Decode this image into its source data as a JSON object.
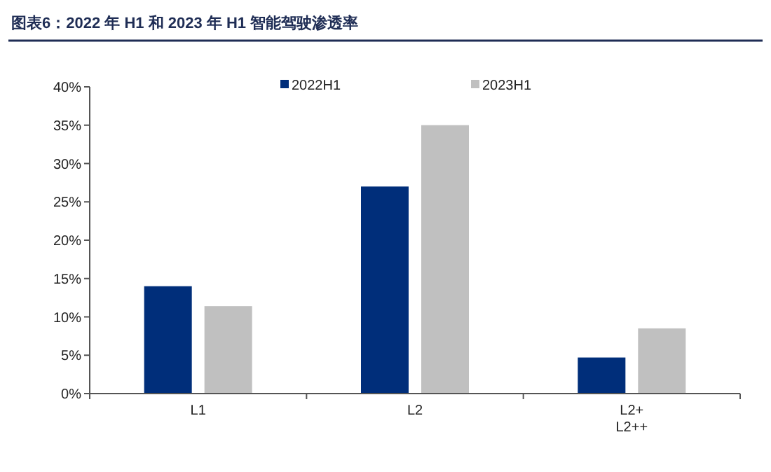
{
  "chart_data": {
    "type": "bar",
    "title": "图表6：2022 年 H1 和 2023 年 H1 智能驾驶渗透率",
    "categories": [
      "L1",
      "L2",
      "L2+\nL2++"
    ],
    "series": [
      {
        "name": "2022H1",
        "color": "#002e7a",
        "values": [
          14.0,
          27.0,
          4.7
        ]
      },
      {
        "name": "2023H1",
        "color": "#c0c0c0",
        "values": [
          11.4,
          35.0,
          8.5
        ]
      }
    ],
    "ylim": [
      0,
      40
    ],
    "yticks": [
      {
        "value": 0,
        "label": "0%"
      },
      {
        "value": 5,
        "label": "5%"
      },
      {
        "value": 10,
        "label": "10%"
      },
      {
        "value": 15,
        "label": "15%"
      },
      {
        "value": 20,
        "label": "20%"
      },
      {
        "value": 25,
        "label": "25%"
      },
      {
        "value": 30,
        "label": "30%"
      },
      {
        "value": 35,
        "label": "35%"
      },
      {
        "value": 40,
        "label": "40%"
      }
    ],
    "legend": "top",
    "grid": false
  }
}
